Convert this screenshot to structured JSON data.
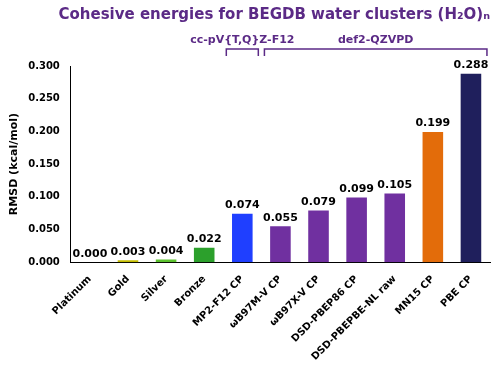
{
  "chart_data": {
    "type": "bar",
    "title": "Cohesive energies for BEGDB water clusters (H₂O)ₙ",
    "y_label": "RMSD (kcal/mol)",
    "categories": [
      "Platinum",
      "Gold",
      "Silver",
      "Bronze",
      "MP2-F12 CP",
      "ωB97M-V CP",
      "ωB97X-V CP",
      "DSD-PBEP86 CP",
      "DSD-PBEPBE-NL raw",
      "MN15 CP",
      "PBE CP"
    ],
    "values": [
      0.0,
      0.003,
      0.004,
      0.022,
      0.074,
      0.055,
      0.079,
      0.099,
      0.105,
      0.199,
      0.288
    ],
    "value_labels": [
      "0.000",
      "0.003",
      "0.004",
      "0.022",
      "0.074",
      "0.055",
      "0.079",
      "0.099",
      "0.105",
      "0.199",
      "0.288"
    ],
    "colors": [
      "#7f7f7f",
      "#c4bd00",
      "#5cc22e",
      "#2ca02c",
      "#1f3fff",
      "#7030a0",
      "#7030a0",
      "#7030a0",
      "#7030a0",
      "#e36c0a",
      "#1f1f5c"
    ],
    "ylim": [
      0,
      0.3
    ],
    "yticks": [
      {
        "value": 0,
        "label": "0.000"
      },
      {
        "value": 0.05,
        "label": "0.050"
      },
      {
        "value": 0.1,
        "label": "0.100"
      },
      {
        "value": 0.15,
        "label": "0.150"
      },
      {
        "value": 0.2,
        "label": "0.200"
      },
      {
        "value": 0.25,
        "label": "0.250"
      },
      {
        "value": 0.3,
        "label": "0.300"
      }
    ],
    "grid": false,
    "data_labels": true,
    "annotations": [
      {
        "text": "cc-pV{T,Q}Z-F12",
        "from": "MP2-F12 CP",
        "to": "MP2-F12 CP"
      },
      {
        "text": "def2-QZVPD",
        "from": "ωB97M-V CP",
        "to": "PBE CP"
      }
    ]
  }
}
